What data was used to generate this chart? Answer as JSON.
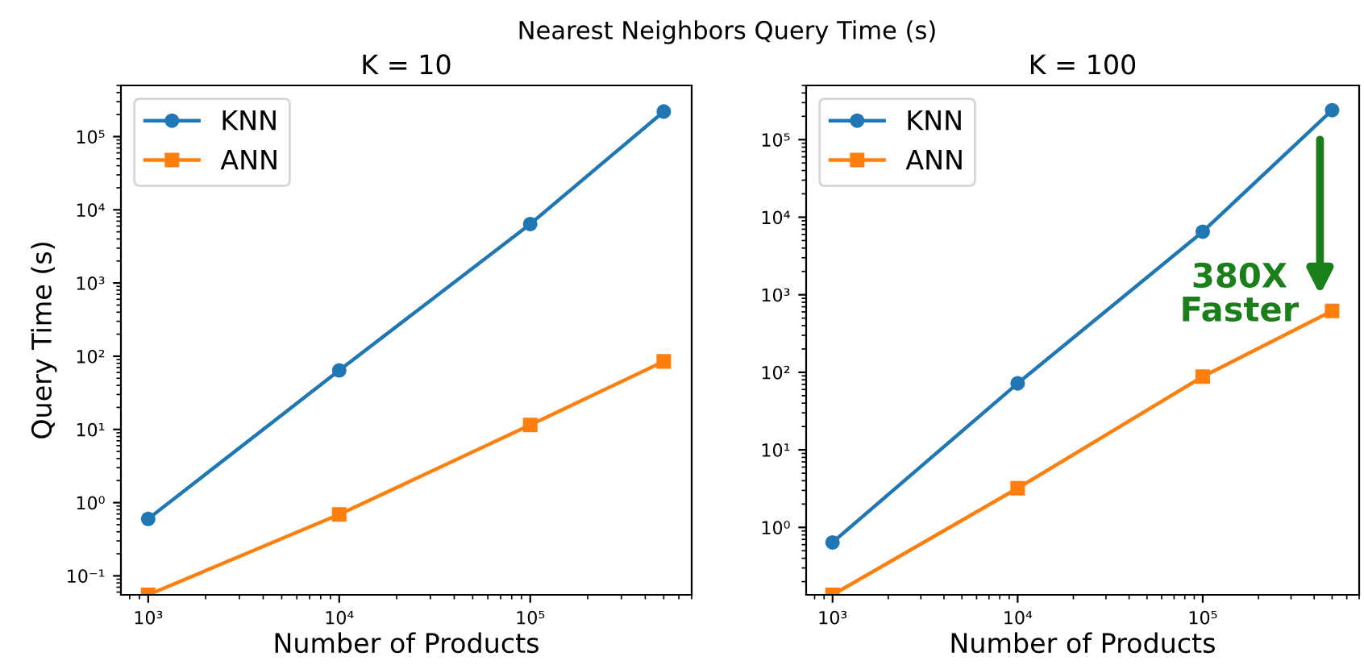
{
  "chart_data": [
    {
      "type": "line",
      "title": "K = 10",
      "xlabel": "Number of Products",
      "ylabel": "Query Time (s)",
      "log": "xy",
      "legend": "top left",
      "annotations": [
        "Nearest Neighbors Query Time (s)"
      ],
      "x": [
        1000,
        10000,
        100000,
        500000
      ],
      "series": [
        {
          "name": "KNN",
          "color": "#1f77b4",
          "marker": "circle",
          "values": [
            0.6,
            64,
            6400,
            220000
          ]
        },
        {
          "name": "ANN",
          "color": "#ff7f0e",
          "marker": "square",
          "values": [
            0.055,
            0.69,
            11.5,
            85
          ]
        }
      ],
      "xlim": [
        720,
        700000
      ],
      "ylim": [
        0.055,
        500000
      ],
      "xticks": [
        {
          "value": 1000,
          "label": "10³"
        },
        {
          "value": 10000,
          "label": "10⁴"
        },
        {
          "value": 100000,
          "label": "10⁵"
        }
      ],
      "yticks": [
        {
          "value": 0.1,
          "label": "10⁻¹"
        },
        {
          "value": 1,
          "label": "10⁰"
        },
        {
          "value": 10,
          "label": "10¹"
        },
        {
          "value": 100,
          "label": "10²"
        },
        {
          "value": 1000,
          "label": "10³"
        },
        {
          "value": 10000,
          "label": "10⁴"
        },
        {
          "value": 100000,
          "label": "10⁵"
        }
      ]
    },
    {
      "type": "line",
      "title": "K = 100",
      "xlabel": "Number of Products",
      "log": "xy",
      "legend": "top left",
      "annotations": [
        "380X\nFaster"
      ],
      "x": [
        1000,
        10000,
        100000,
        500000
      ],
      "series": [
        {
          "name": "KNN",
          "color": "#1f77b4",
          "marker": "circle",
          "values": [
            0.64,
            72,
            6500,
            240000
          ]
        },
        {
          "name": "ANN",
          "color": "#ff7f0e",
          "marker": "square",
          "values": [
            0.135,
            3.2,
            88,
            620
          ]
        }
      ],
      "xlim": [
        720,
        700000
      ],
      "ylim": [
        0.135,
        500000
      ],
      "xticks": [
        {
          "value": 1000,
          "label": "10³"
        },
        {
          "value": 10000,
          "label": "10⁴"
        },
        {
          "value": 100000,
          "label": "10⁵"
        }
      ],
      "yticks": [
        {
          "value": 1,
          "label": "10⁰"
        },
        {
          "value": 10,
          "label": "10¹"
        },
        {
          "value": 100,
          "label": "10²"
        },
        {
          "value": 1000,
          "label": "10³"
        },
        {
          "value": 10000,
          "label": "10⁴"
        },
        {
          "value": 100000,
          "label": "10⁵"
        }
      ]
    }
  ]
}
